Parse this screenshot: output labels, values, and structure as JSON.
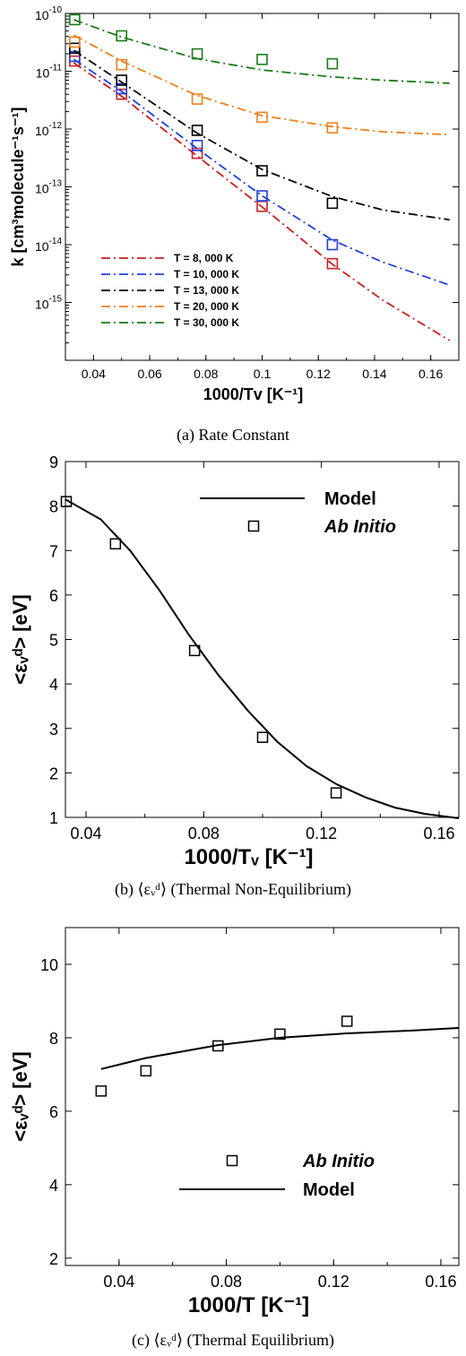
{
  "chart_data": [
    {
      "type": "line",
      "panel": "a",
      "caption": "(a) Rate Constant",
      "xlabel": "1000/Tv [K⁻¹]",
      "ylabel": "k [cm³molecule⁻¹s⁻¹]",
      "xlim": [
        0.03,
        0.17
      ],
      "ylim": [
        1e-16,
        1e-10
      ],
      "yscale": "log",
      "xticks": [
        "0.04",
        "0.06",
        "0.08",
        "0.1",
        "0.12",
        "0.14",
        "0.16"
      ],
      "yticks": [
        {
          "base": "10",
          "exp": "-15"
        },
        {
          "base": "10",
          "exp": "-14"
        },
        {
          "base": "10",
          "exp": "-13"
        },
        {
          "base": "10",
          "exp": "-12"
        },
        {
          "base": "10",
          "exp": "-11"
        },
        {
          "base": "10",
          "exp": "-10"
        }
      ],
      "legend_position": "bottom-left",
      "series": [
        {
          "name": "T = 8, 000 K",
          "color": "#cc1f1f",
          "style": "dash-dot",
          "model_x": [
            0.033,
            0.05,
            0.0769,
            0.1,
            0.125,
            0.1429,
            0.1667
          ],
          "model_y": [
            1.4e-11,
            3.7e-12,
            3.4e-13,
            4.5e-14,
            4.6e-15,
            1.1e-15,
            2.2e-16
          ],
          "ab_x": [
            0.0333,
            0.05,
            0.0769,
            0.1,
            0.125
          ],
          "ab_y": [
            1.5e-11,
            4e-12,
            3.8e-13,
            4.6e-14,
            4.7e-15
          ]
        },
        {
          "name": "T = 10, 000 K",
          "color": "#2040e0",
          "style": "dash-dot",
          "model_x": [
            0.033,
            0.05,
            0.0769,
            0.1,
            0.125,
            0.1429,
            0.1667
          ],
          "model_y": [
            1.6e-11,
            4.5e-12,
            4.6e-13,
            7e-14,
            1.2e-14,
            5e-15,
            2e-15
          ],
          "ab_x": [
            0.0333,
            0.05,
            0.0769,
            0.1,
            0.125
          ],
          "ab_y": [
            1.8e-11,
            5e-12,
            5.2e-13,
            7e-14,
            1e-14
          ]
        },
        {
          "name": "T = 13, 000 K",
          "color": "#000000",
          "style": "dash-dot",
          "model_x": [
            0.033,
            0.05,
            0.0769,
            0.1,
            0.125,
            0.1429,
            0.1667
          ],
          "model_y": [
            2.3e-11,
            6.5e-12,
            8.5e-13,
            2e-13,
            6.8e-14,
            4e-14,
            2.7e-14
          ],
          "ab_x": [
            0.0333,
            0.05,
            0.0769,
            0.1,
            0.125
          ],
          "ab_y": [
            2.5e-11,
            7e-12,
            9.5e-13,
            1.9e-13,
            5.2e-14
          ]
        },
        {
          "name": "T = 20, 000 K",
          "color": "#f07f1a",
          "style": "dash-dot",
          "model_x": [
            0.033,
            0.05,
            0.0769,
            0.1,
            0.125,
            0.1429,
            0.1667
          ],
          "model_y": [
            4.2e-11,
            1.5e-11,
            3.8e-12,
            1.7e-12,
            1.1e-12,
            9e-13,
            8e-13
          ],
          "ab_x": [
            0.0333,
            0.05,
            0.0769,
            0.1,
            0.125
          ],
          "ab_y": [
            3.2e-11,
            1.3e-11,
            3.3e-12,
            1.6e-12,
            1.05e-12
          ]
        },
        {
          "name": "T = 30, 000 K",
          "color": "#1a7a1a",
          "style": "dash-dot",
          "model_x": [
            0.033,
            0.05,
            0.0769,
            0.1,
            0.125,
            0.1429,
            0.1667
          ],
          "model_y": [
            7.8e-11,
            3.9e-11,
            1.65e-11,
            1.05e-11,
            8e-12,
            7e-12,
            6.2e-12
          ],
          "ab_x": [
            0.0333,
            0.05,
            0.0769,
            0.1,
            0.125
          ],
          "ab_y": [
            7.8e-11,
            4.1e-11,
            2e-11,
            1.6e-11,
            1.35e-11
          ]
        }
      ]
    },
    {
      "type": "line",
      "panel": "b",
      "caption": "(b) ⟨εᵥᵈ⟩ (Thermal Non-Equilibrium)",
      "xlabel": "1000/Tᵥ [K⁻¹]",
      "ylabel": "<εᵥᵈ> [eV]",
      "xlim": [
        0.033,
        0.1667
      ],
      "ylim": [
        1,
        9
      ],
      "xticks": [
        "0.04",
        "0.08",
        "0.12",
        "0.16"
      ],
      "yticks": [
        "1",
        "2",
        "3",
        "4",
        "5",
        "6",
        "7",
        "8",
        "9"
      ],
      "legend_position": "top-right",
      "legend": {
        "model": "Model",
        "ab_initio": "Ab Initio"
      },
      "model": {
        "x": [
          0.033,
          0.045,
          0.055,
          0.065,
          0.075,
          0.085,
          0.095,
          0.105,
          0.115,
          0.125,
          0.135,
          0.145,
          0.155,
          0.1667
        ],
        "y": [
          8.15,
          7.7,
          7.0,
          6.1,
          5.1,
          4.2,
          3.4,
          2.7,
          2.15,
          1.75,
          1.45,
          1.22,
          1.08,
          0.98
        ]
      },
      "ab_initio": {
        "x": [
          0.0333,
          0.05,
          0.0769,
          0.1,
          0.125
        ],
        "y": [
          8.1,
          7.15,
          4.75,
          2.8,
          1.55
        ]
      }
    },
    {
      "type": "line",
      "panel": "c",
      "caption": "(c) ⟨εᵥᵈ⟩ (Thermal Equilibrium)",
      "xlabel": "1000/T [K⁻¹]",
      "ylabel": "<εᵥᵈ> [eV]",
      "xlim": [
        0.02,
        0.1667
      ],
      "ylim": [
        1.8,
        11
      ],
      "xticks": [
        "0.04",
        "0.08",
        "0.12",
        "0.16"
      ],
      "yticks": [
        "2",
        "4",
        "6",
        "8",
        "10"
      ],
      "legend_position": "bottom-center",
      "legend": {
        "ab_initio": "Ab Initio",
        "model": "Model"
      },
      "model": {
        "x": [
          0.0333,
          0.05,
          0.0769,
          0.1,
          0.125,
          0.15,
          0.1667
        ],
        "y": [
          7.15,
          7.45,
          7.8,
          8.0,
          8.12,
          8.2,
          8.27
        ]
      },
      "ab_initio": {
        "x": [
          0.0333,
          0.05,
          0.0769,
          0.1,
          0.125
        ],
        "y": [
          6.55,
          7.1,
          7.78,
          8.1,
          8.45
        ]
      }
    }
  ]
}
